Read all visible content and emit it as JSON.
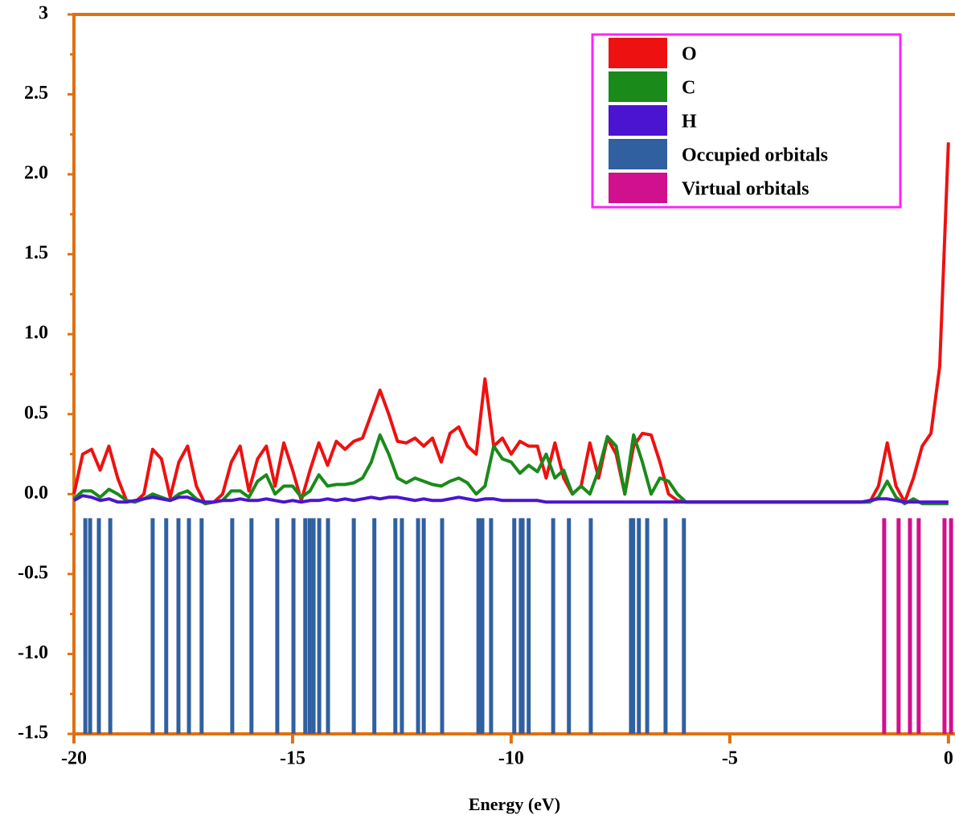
{
  "chart_data": {
    "type": "line",
    "x_label": "Energy (eV)",
    "xlim": [
      -20,
      0.15
    ],
    "xticks": [
      -20,
      -15,
      -10,
      -5,
      0
    ],
    "ylim": [
      -1.5,
      3
    ],
    "yticks": [
      {
        "value": -1.5,
        "label": "-1.5"
      },
      {
        "value": -1,
        "label": "-1.0"
      },
      {
        "value": -0.5,
        "label": "-0.5"
      },
      {
        "value": 0,
        "label": "0.0"
      },
      0.5,
      {
        "value": 1,
        "label": "1.0"
      },
      1.5,
      {
        "value": 2,
        "label": "2.0"
      },
      2.5,
      3
    ],
    "legend": "top-right",
    "x": [
      -20,
      -19.8,
      -19.6,
      -19.4,
      -19.2,
      -19,
      -18.8,
      -18.6,
      -18.4,
      -18.2,
      -18,
      -17.8,
      -17.6,
      -17.4,
      -17.2,
      -17,
      -16.8,
      -16.6,
      -16.4,
      -16.2,
      -16,
      -15.8,
      -15.6,
      -15.4,
      -15.2,
      -15,
      -14.8,
      -14.6,
      -14.4,
      -14.2,
      -14,
      -13.8,
      -13.6,
      -13.4,
      -13.2,
      -13,
      -12.8,
      -12.6,
      -12.4,
      -12.2,
      -12,
      -11.8,
      -11.6,
      -11.4,
      -11.2,
      -11,
      -10.8,
      -10.6,
      -10.4,
      -10.2,
      -10,
      -9.8,
      -9.6,
      -9.4,
      -9.2,
      -9,
      -8.8,
      -8.6,
      -8.4,
      -8.2,
      -8,
      -7.8,
      -7.6,
      -7.4,
      -7.2,
      -7,
      -6.8,
      -6.6,
      -6.4,
      -6.2,
      -6,
      -5.8,
      -5.6,
      -5.4,
      -5.2,
      -5,
      -4.8,
      -4.6,
      -4.4,
      -4.2,
      -4,
      -3.8,
      -3.6,
      -3.4,
      -3.2,
      -3,
      -2.8,
      -2.6,
      -2.4,
      -2.2,
      -2,
      -1.8,
      -1.6,
      -1.4,
      -1.2,
      -1,
      -0.8,
      -0.6,
      -0.4,
      -0.2,
      0
    ],
    "series": [
      {
        "name": "O",
        "color": "#ee1111",
        "values": [
          0,
          0.25,
          0.28,
          0.15,
          0.3,
          0.1,
          -0.04,
          -0.05,
          0,
          0.28,
          0.22,
          -0.02,
          0.2,
          0.3,
          0.05,
          -0.06,
          -0.05,
          0,
          0.2,
          0.3,
          0.02,
          0.22,
          0.3,
          0.05,
          0.32,
          0.15,
          -0.04,
          0.15,
          0.32,
          0.18,
          0.33,
          0.28,
          0.33,
          0.35,
          0.5,
          0.65,
          0.5,
          0.33,
          0.32,
          0.35,
          0.3,
          0.35,
          0.2,
          0.38,
          0.42,
          0.3,
          0.25,
          0.72,
          0.3,
          0.35,
          0.25,
          0.33,
          0.3,
          0.3,
          0.1,
          0.32,
          0.1,
          0,
          0.05,
          0.32,
          0.1,
          0.35,
          0.25,
          0,
          0.3,
          0.38,
          0.37,
          0.2,
          0,
          -0.04,
          -0.05,
          -0.05,
          -0.05,
          -0.05,
          -0.05,
          -0.05,
          -0.05,
          -0.05,
          -0.05,
          -0.05,
          -0.05,
          -0.05,
          -0.05,
          -0.05,
          -0.05,
          -0.05,
          -0.05,
          -0.05,
          -0.05,
          -0.05,
          -0.05,
          -0.05,
          0.05,
          0.32,
          0.05,
          -0.05,
          0.1,
          0.3,
          0.38,
          0.8,
          2.2
        ]
      },
      {
        "name": "C",
        "color": "#1a8a1a",
        "values": [
          -0.03,
          0.02,
          0.02,
          -0.02,
          0.03,
          0,
          -0.04,
          -0.05,
          -0.03,
          0,
          -0.02,
          -0.04,
          0,
          0.02,
          -0.03,
          -0.06,
          -0.05,
          -0.04,
          0.02,
          0.02,
          -0.02,
          0.08,
          0.12,
          0,
          0.05,
          0.05,
          -0.02,
          0.02,
          0.12,
          0.05,
          0.06,
          0.06,
          0.07,
          0.1,
          0.2,
          0.37,
          0.25,
          0.1,
          0.07,
          0.1,
          0.08,
          0.06,
          0.05,
          0.08,
          0.1,
          0.07,
          0,
          0.05,
          0.3,
          0.22,
          0.2,
          0.13,
          0.18,
          0.14,
          0.25,
          0.1,
          0.15,
          0,
          0.05,
          0,
          0.15,
          0.36,
          0.3,
          0,
          0.37,
          0.2,
          0,
          0.1,
          0.08,
          0,
          -0.05,
          -0.05,
          -0.05,
          -0.05,
          -0.05,
          -0.05,
          -0.05,
          -0.05,
          -0.05,
          -0.05,
          -0.05,
          -0.05,
          -0.05,
          -0.05,
          -0.05,
          -0.05,
          -0.05,
          -0.05,
          -0.05,
          -0.05,
          -0.05,
          -0.05,
          -0.02,
          0.08,
          -0.02,
          -0.06,
          -0.03,
          -0.06,
          -0.06,
          -0.06,
          -0.06
        ]
      },
      {
        "name": "H",
        "color": "#4a14d0",
        "values": [
          -0.04,
          -0.01,
          -0.02,
          -0.04,
          -0.03,
          -0.05,
          -0.05,
          -0.04,
          -0.03,
          -0.02,
          -0.03,
          -0.04,
          -0.02,
          -0.02,
          -0.04,
          -0.05,
          -0.05,
          -0.04,
          -0.04,
          -0.03,
          -0.04,
          -0.04,
          -0.03,
          -0.04,
          -0.05,
          -0.04,
          -0.05,
          -0.04,
          -0.04,
          -0.03,
          -0.04,
          -0.03,
          -0.04,
          -0.03,
          -0.02,
          -0.03,
          -0.02,
          -0.02,
          -0.03,
          -0.04,
          -0.03,
          -0.04,
          -0.04,
          -0.03,
          -0.02,
          -0.03,
          -0.04,
          -0.03,
          -0.03,
          -0.04,
          -0.04,
          -0.04,
          -0.04,
          -0.04,
          -0.05,
          -0.05,
          -0.05,
          -0.05,
          -0.05,
          -0.05,
          -0.05,
          -0.05,
          -0.05,
          -0.05,
          -0.05,
          -0.05,
          -0.05,
          -0.05,
          -0.05,
          -0.05,
          -0.05,
          -0.05,
          -0.05,
          -0.05,
          -0.05,
          -0.05,
          -0.05,
          -0.05,
          -0.05,
          -0.05,
          -0.05,
          -0.05,
          -0.05,
          -0.05,
          -0.05,
          -0.05,
          -0.05,
          -0.05,
          -0.05,
          -0.05,
          -0.05,
          -0.04,
          -0.03,
          -0.03,
          -0.04,
          -0.05,
          -0.05,
          -0.05,
          -0.05,
          -0.05,
          -0.05
        ]
      }
    ],
    "orbitals": [
      {
        "name": "Occupied orbitals",
        "color": "#3060a0",
        "energies": [
          -19.74,
          -19.63,
          -19.43,
          -19.17,
          -18.2,
          -17.89,
          -17.61,
          -17.37,
          -17.08,
          -16.38,
          -15.94,
          -15.35,
          -14.98,
          -14.71,
          -14.61,
          -14.52,
          -14.39,
          -14.19,
          -13.6,
          -13.13,
          -12.65,
          -12.5,
          -12.13,
          -12,
          -11.58,
          -10.75,
          -10.66,
          -10.46,
          -9.93,
          -9.78,
          -9.74,
          -9.6,
          -9.04,
          -8.68,
          -8.18,
          -7.26,
          -7.21,
          -7.08,
          -6.89,
          -6.47,
          -6.05
        ]
      },
      {
        "name": "Virtual orbitals",
        "color": "#d0108c",
        "energies": [
          -1.47,
          -1.14,
          -0.88,
          -0.68,
          -0.09,
          0.06
        ]
      }
    ]
  }
}
